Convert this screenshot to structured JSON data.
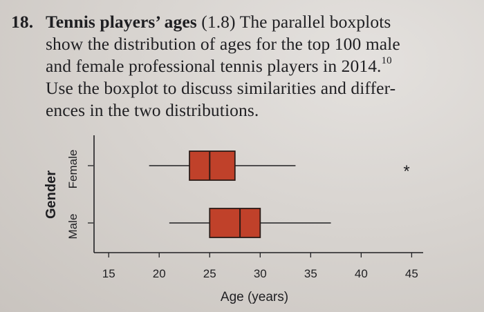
{
  "problem": {
    "number": "18.",
    "title": "Tennis players’ ages",
    "section": "(1.8)",
    "line1_rest": "The parallel boxplots",
    "line2": "show the distribution of ages for the top 100 male",
    "line3": "and female professional tennis players in 2014.",
    "footnote": "10",
    "line4": "Use the boxplot to discuss similarities and differ-",
    "line5": "ences in the two distributions."
  },
  "chart_data": {
    "type": "boxplot",
    "orientation": "horizontal",
    "xlabel": "Age (years)",
    "ylabel": "Gender",
    "xlim": [
      13,
      46
    ],
    "xticks": [
      15,
      20,
      25,
      30,
      35,
      40,
      45
    ],
    "box_color": "#c0412a",
    "series": [
      {
        "name": "Female",
        "min": 19,
        "q1": 23,
        "median": 25,
        "q3": 27.5,
        "max": 33.5,
        "outliers": [
          44.5
        ]
      },
      {
        "name": "Male",
        "min": 21,
        "q1": 25,
        "median": 28,
        "q3": 30,
        "max": 37,
        "outliers": []
      }
    ]
  }
}
